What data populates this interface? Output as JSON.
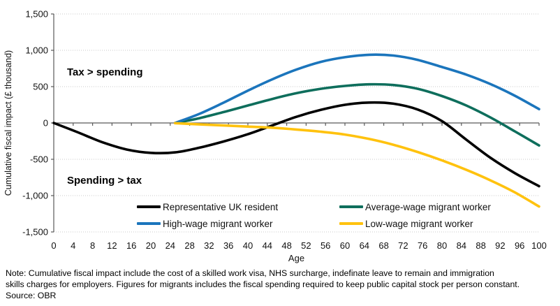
{
  "figure": {
    "y_axis_title": "Cumulative fiscal impact (£ thousand)",
    "x_axis_title": "Age",
    "annotation_top": "Tax > spending",
    "annotation_bottom": "Spending > tax",
    "note_line1": "Note: Cumulative fiscal impact include the cost of a skilled work visa, NHS surcharge, indefinate leave to remain and immigration",
    "note_line2": "skills charges for employers. Figures for migrants includes the fiscal spending required to keep public capital stock per person constant.",
    "source": "Source: OBR"
  },
  "chart_data": {
    "type": "line",
    "title": "",
    "xlabel": "Age",
    "ylabel": "Cumulative fiscal impact (£ thousand)",
    "xlim": [
      0,
      100
    ],
    "ylim": [
      -1500,
      1500
    ],
    "x_tick_step": 4,
    "x_ticks": [
      0,
      4,
      8,
      12,
      16,
      20,
      24,
      28,
      32,
      36,
      40,
      44,
      48,
      52,
      56,
      60,
      64,
      68,
      72,
      76,
      80,
      84,
      88,
      92,
      96,
      100
    ],
    "y_ticks": [
      {
        "value": 1500,
        "label": "1,500"
      },
      {
        "value": 1000,
        "label": "1,000"
      },
      {
        "value": 500,
        "label": "500"
      },
      {
        "value": 0,
        "label": "0"
      },
      {
        "value": -500,
        "label": "-500"
      },
      {
        "value": -1000,
        "label": "-1,000"
      },
      {
        "value": -1500,
        "label": "-1,500"
      }
    ],
    "grid": "horizontal-dotted",
    "legend_position": "inside-bottom-two-columns",
    "annotations": [
      "Tax > spending",
      "Spending > tax"
    ],
    "colors": {
      "axis": "#595959",
      "gridline": "#c8c8c8",
      "text": "#111111"
    },
    "series": [
      {
        "name": "Representative UK resident",
        "color": "#000000",
        "x": [
          0,
          5,
          10,
          15,
          20,
          25,
          30,
          35,
          40,
          45,
          50,
          55,
          60,
          65,
          70,
          75,
          80,
          85,
          90,
          95,
          100
        ],
        "y": [
          0,
          -130,
          -265,
          -365,
          -412,
          -405,
          -340,
          -255,
          -155,
          -35,
          85,
          180,
          250,
          281,
          265,
          185,
          25,
          -230,
          -480,
          -690,
          -870
        ]
      },
      {
        "name": "Average-wage migrant worker",
        "color": "#0E6E5C",
        "x": [
          25,
          30,
          35,
          40,
          45,
          50,
          55,
          60,
          65,
          70,
          75,
          80,
          85,
          90,
          95,
          100
        ],
        "y": [
          0,
          65,
          150,
          240,
          330,
          410,
          470,
          510,
          532,
          522,
          470,
          370,
          240,
          75,
          -115,
          -310
        ]
      },
      {
        "name": "High-wage migrant worker",
        "color": "#1B75BC",
        "x": [
          25,
          30,
          35,
          40,
          45,
          50,
          55,
          60,
          65,
          70,
          75,
          80,
          85,
          90,
          95,
          100
        ],
        "y": [
          0,
          125,
          280,
          445,
          600,
          735,
          840,
          905,
          938,
          928,
          868,
          770,
          665,
          535,
          375,
          190
        ]
      },
      {
        "name": "Low-wage migrant worker",
        "color": "#FFC20E",
        "x": [
          25,
          30,
          35,
          40,
          45,
          50,
          55,
          60,
          65,
          70,
          75,
          80,
          85,
          90,
          95,
          100
        ],
        "y": [
          -3,
          -20,
          -35,
          -50,
          -65,
          -90,
          -120,
          -160,
          -220,
          -300,
          -400,
          -515,
          -645,
          -790,
          -955,
          -1150
        ]
      }
    ]
  }
}
